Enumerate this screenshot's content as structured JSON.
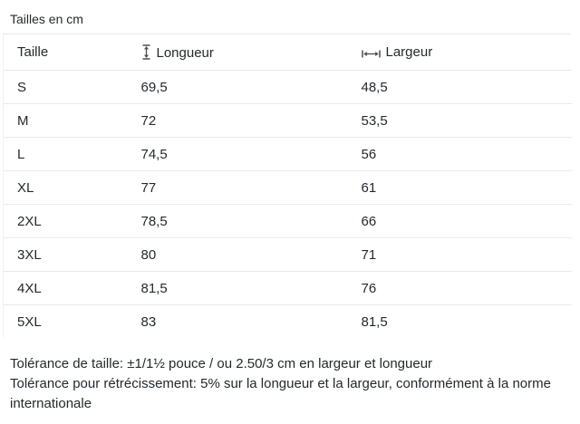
{
  "title": "Tailles en cm",
  "table": {
    "columns": [
      {
        "label": "Taille",
        "icon": "none"
      },
      {
        "label": "Longueur",
        "icon": "vertical-measure-icon"
      },
      {
        "label": "Largeur",
        "icon": "horizontal-measure-icon"
      }
    ],
    "rows": [
      {
        "taille": "S",
        "longueur": "69,5",
        "largeur": "48,5"
      },
      {
        "taille": "M",
        "longueur": "72",
        "largeur": "53,5"
      },
      {
        "taille": "L",
        "longueur": "74,5",
        "largeur": "56"
      },
      {
        "taille": "XL",
        "longueur": "77",
        "largeur": "61"
      },
      {
        "taille": "2XL",
        "longueur": "78,5",
        "largeur": "66"
      },
      {
        "taille": "3XL",
        "longueur": "80",
        "largeur": "71"
      },
      {
        "taille": "4XL",
        "longueur": "81,5",
        "largeur": "76"
      },
      {
        "taille": "5XL",
        "longueur": "83",
        "largeur": "81,5"
      }
    ]
  },
  "notes": [
    "Tolérance de taille: ±1/1½ pouce / ou 2.50/3 cm en largeur et longueur",
    "Tolérance pour rétrécissement: 5% sur la longueur et la largeur, conformément à la norme internationale"
  ],
  "colors": {
    "text": "#24292e",
    "border": "#e9e9e9",
    "icon": "#4d4d4d",
    "background": "#ffffff"
  }
}
